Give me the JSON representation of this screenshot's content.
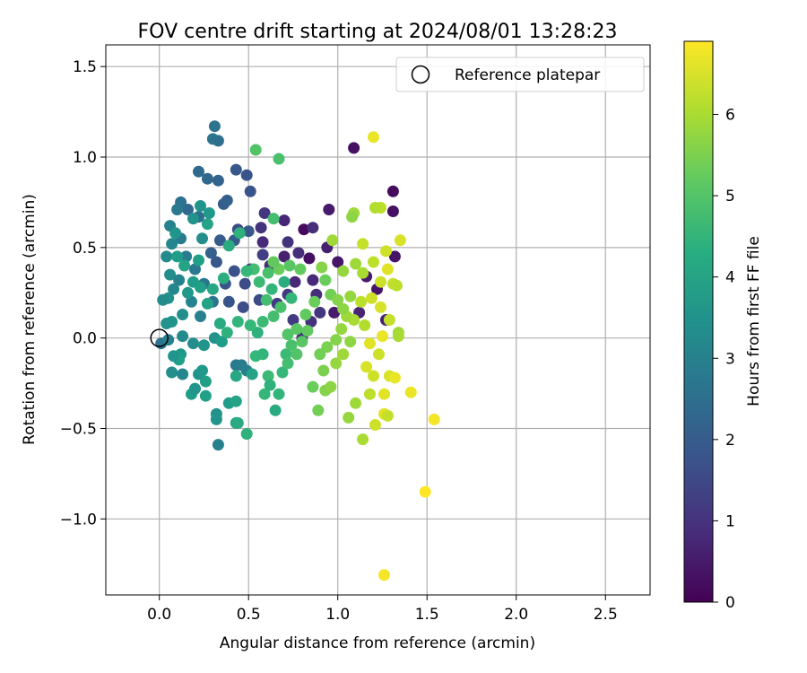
{
  "chart_data": {
    "type": "scatter",
    "title": "FOV centre drift starting at 2024/08/01 13:28:23",
    "xlabel": "Angular distance from reference (arcmin)",
    "ylabel": "Rotation from reference (arcmin)",
    "xlim": [
      -0.3,
      2.75
    ],
    "ylim": [
      -1.42,
      1.62
    ],
    "x_ticks": [
      0.0,
      0.5,
      1.0,
      1.5,
      2.0,
      2.5
    ],
    "x_tick_labels": [
      "0.0",
      "0.5",
      "1.0",
      "1.5",
      "2.0",
      "2.5"
    ],
    "y_ticks": [
      -1.0,
      -0.5,
      0.0,
      0.5,
      1.0,
      1.5
    ],
    "y_tick_labels": [
      "−1.0",
      "−0.5",
      "0.0",
      "0.5",
      "1.0",
      "1.5"
    ],
    "grid": true,
    "legend": {
      "placement": "top-right",
      "entries": [
        "Reference platepar"
      ]
    },
    "reference_point": {
      "x": 0.0,
      "y": 0.0,
      "marker": "open-circle"
    },
    "colorbar": {
      "label": "Hours from first FF file",
      "range": [
        0,
        6.9
      ],
      "ticks": [
        0,
        1,
        2,
        3,
        4,
        5,
        6
      ],
      "tick_labels": [
        "0",
        "1",
        "2",
        "3",
        "4",
        "5",
        "6"
      ],
      "colormap": "viridis"
    },
    "points": [
      {
        "x": 1.09,
        "y": 1.05,
        "h": 0.3
      },
      {
        "x": 1.31,
        "y": 0.81,
        "h": 0.2
      },
      {
        "x": 1.31,
        "y": 0.7,
        "h": 0.3
      },
      {
        "x": 1.32,
        "y": 0.45,
        "h": 0.4
      },
      {
        "x": 0.95,
        "y": 0.71,
        "h": 0.5
      },
      {
        "x": 0.94,
        "y": 0.5,
        "h": 0.6
      },
      {
        "x": 1.0,
        "y": 0.42,
        "h": 0.4
      },
      {
        "x": 1.16,
        "y": 0.34,
        "h": 0.5
      },
      {
        "x": 1.22,
        "y": 0.27,
        "h": 0.4
      },
      {
        "x": 1.27,
        "y": 0.1,
        "h": 0.6
      },
      {
        "x": 1.12,
        "y": 0.14,
        "h": 0.7
      },
      {
        "x": 0.98,
        "y": 0.14,
        "h": 0.5
      },
      {
        "x": 0.86,
        "y": 0.32,
        "h": 0.8
      },
      {
        "x": 0.84,
        "y": 0.44,
        "h": 0.3
      },
      {
        "x": 0.81,
        "y": 0.6,
        "h": 0.2
      },
      {
        "x": 0.86,
        "y": 0.61,
        "h": 0.9
      },
      {
        "x": 0.7,
        "y": 0.65,
        "h": 0.7
      },
      {
        "x": 0.7,
        "y": 0.45,
        "h": 0.6
      },
      {
        "x": 0.62,
        "y": 0.4,
        "h": 0.9
      },
      {
        "x": 0.72,
        "y": 0.53,
        "h": 1.0
      },
      {
        "x": 0.78,
        "y": 0.47,
        "h": 0.9
      },
      {
        "x": 0.72,
        "y": 0.24,
        "h": 1.1
      },
      {
        "x": 0.66,
        "y": 0.19,
        "h": 1.2
      },
      {
        "x": 0.88,
        "y": 0.24,
        "h": 0.9
      },
      {
        "x": 0.9,
        "y": 0.14,
        "h": 1.1
      },
      {
        "x": 0.85,
        "y": 0.09,
        "h": 1.0
      },
      {
        "x": 0.75,
        "y": 0.1,
        "h": 1.2
      },
      {
        "x": 0.8,
        "y": -0.0,
        "h": 1.0
      },
      {
        "x": 0.76,
        "y": 0.31,
        "h": 0.8
      },
      {
        "x": 0.58,
        "y": 0.53,
        "h": 0.8
      },
      {
        "x": 0.59,
        "y": 0.69,
        "h": 1.1
      },
      {
        "x": 0.57,
        "y": 0.61,
        "h": 1.0
      },
      {
        "x": 0.58,
        "y": 0.46,
        "h": 1.3
      },
      {
        "x": 0.51,
        "y": 0.38,
        "h": 1.4
      },
      {
        "x": 0.56,
        "y": 0.21,
        "h": 1.5
      },
      {
        "x": 0.48,
        "y": 0.3,
        "h": 1.6
      },
      {
        "x": 0.42,
        "y": 0.37,
        "h": 1.7
      },
      {
        "x": 0.37,
        "y": 0.3,
        "h": 1.8
      },
      {
        "x": 0.32,
        "y": 0.42,
        "h": 1.9
      },
      {
        "x": 0.47,
        "y": 0.17,
        "h": 1.6
      },
      {
        "x": 0.39,
        "y": 0.2,
        "h": 1.8
      },
      {
        "x": 0.34,
        "y": 0.54,
        "h": 2.0
      },
      {
        "x": 0.29,
        "y": 0.47,
        "h": 2.1
      },
      {
        "x": 0.42,
        "y": 0.54,
        "h": 2.0
      },
      {
        "x": 0.5,
        "y": 0.59,
        "h": 1.9
      },
      {
        "x": 0.51,
        "y": 0.81,
        "h": 1.8
      },
      {
        "x": 0.44,
        "y": 0.6,
        "h": 1.5
      },
      {
        "x": 0.36,
        "y": 0.74,
        "h": 2.0
      },
      {
        "x": 0.49,
        "y": 0.9,
        "h": 1.8
      },
      {
        "x": 0.43,
        "y": 0.93,
        "h": 1.9
      },
      {
        "x": 0.38,
        "y": 0.76,
        "h": 2.1
      },
      {
        "x": 0.33,
        "y": 0.87,
        "h": 2.2
      },
      {
        "x": 0.27,
        "y": 0.88,
        "h": 2.3
      },
      {
        "x": 0.22,
        "y": 0.92,
        "h": 2.4
      },
      {
        "x": 0.31,
        "y": 1.17,
        "h": 2.6
      },
      {
        "x": 0.3,
        "y": 1.1,
        "h": 2.7
      },
      {
        "x": 0.33,
        "y": 1.09,
        "h": 2.5
      },
      {
        "x": 0.22,
        "y": 0.67,
        "h": 2.5
      },
      {
        "x": 0.16,
        "y": 0.71,
        "h": 2.3
      },
      {
        "x": 0.12,
        "y": 0.75,
        "h": 2.6
      },
      {
        "x": 0.1,
        "y": 0.71,
        "h": 2.8
      },
      {
        "x": 0.06,
        "y": 0.62,
        "h": 3.1
      },
      {
        "x": 0.12,
        "y": 0.55,
        "h": 2.9
      },
      {
        "x": 0.07,
        "y": 0.52,
        "h": 3.2
      },
      {
        "x": 0.04,
        "y": 0.45,
        "h": 3.3
      },
      {
        "x": 0.06,
        "y": 0.35,
        "h": 3.4
      },
      {
        "x": 0.08,
        "y": 0.27,
        "h": 3.2
      },
      {
        "x": 0.05,
        "y": 0.22,
        "h": 3.5
      },
      {
        "x": 0.02,
        "y": 0.21,
        "h": 3.3
      },
      {
        "x": 0.11,
        "y": 0.32,
        "h": 3.1
      },
      {
        "x": 0.15,
        "y": 0.45,
        "h": 2.9
      },
      {
        "x": 0.2,
        "y": 0.38,
        "h": 2.8
      },
      {
        "x": 0.25,
        "y": 0.3,
        "h": 2.7
      },
      {
        "x": 0.3,
        "y": 0.2,
        "h": 2.6
      },
      {
        "x": 0.23,
        "y": 0.12,
        "h": 3.0
      },
      {
        "x": 0.18,
        "y": 0.2,
        "h": 3.1
      },
      {
        "x": 0.13,
        "y": 0.13,
        "h": 3.4
      },
      {
        "x": 0.07,
        "y": 0.09,
        "h": 3.6
      },
      {
        "x": 0.04,
        "y": 0.08,
        "h": 3.5
      },
      {
        "x": 0.01,
        "y": -0.03,
        "h": 2.6
      },
      {
        "x": 0.05,
        "y": -0.01,
        "h": 3.0
      },
      {
        "x": 0.13,
        "y": 0.01,
        "h": 3.3
      },
      {
        "x": 0.19,
        "y": -0.03,
        "h": 3.4
      },
      {
        "x": 0.25,
        "y": -0.04,
        "h": 3.6
      },
      {
        "x": 0.31,
        "y": 0.0,
        "h": 3.5
      },
      {
        "x": 0.35,
        "y": -0.02,
        "h": 3.8
      },
      {
        "x": 0.12,
        "y": -0.09,
        "h": 3.7
      },
      {
        "x": 0.11,
        "y": -0.12,
        "h": 3.9
      },
      {
        "x": 0.08,
        "y": -0.1,
        "h": 3.6
      },
      {
        "x": 0.07,
        "y": -0.19,
        "h": 3.4
      },
      {
        "x": 0.13,
        "y": -0.2,
        "h": 3.2
      },
      {
        "x": 0.22,
        "y": -0.2,
        "h": 3.5
      },
      {
        "x": 0.24,
        "y": -0.18,
        "h": 3.7
      },
      {
        "x": 0.26,
        "y": -0.24,
        "h": 3.9
      },
      {
        "x": 0.18,
        "y": -0.31,
        "h": 3.8
      },
      {
        "x": 0.2,
        "y": -0.28,
        "h": 3.6
      },
      {
        "x": 0.26,
        "y": -0.32,
        "h": 3.9
      },
      {
        "x": 0.32,
        "y": -0.42,
        "h": 3.5
      },
      {
        "x": 0.32,
        "y": -0.45,
        "h": 3.6
      },
      {
        "x": 0.39,
        "y": -0.36,
        "h": 3.8
      },
      {
        "x": 0.43,
        "y": -0.35,
        "h": 4.0
      },
      {
        "x": 0.33,
        "y": -0.59,
        "h": 3.0
      },
      {
        "x": 0.43,
        "y": -0.47,
        "h": 4.0
      },
      {
        "x": 0.44,
        "y": -0.47,
        "h": 4.2
      },
      {
        "x": 0.49,
        "y": -0.53,
        "h": 4.4
      },
      {
        "x": 0.43,
        "y": -0.15,
        "h": 2.8
      },
      {
        "x": 0.46,
        "y": -0.15,
        "h": 2.9
      },
      {
        "x": 0.49,
        "y": -0.18,
        "h": 3.0
      },
      {
        "x": 0.43,
        "y": -0.21,
        "h": 4.1
      },
      {
        "x": 0.52,
        "y": -0.2,
        "h": 4.0
      },
      {
        "x": 0.54,
        "y": -0.1,
        "h": 4.6
      },
      {
        "x": 0.55,
        "y": 0.03,
        "h": 4.4
      },
      {
        "x": 0.58,
        "y": -0.09,
        "h": 4.5
      },
      {
        "x": 0.59,
        "y": -0.31,
        "h": 4.6
      },
      {
        "x": 0.61,
        "y": -0.21,
        "h": 4.7
      },
      {
        "x": 0.62,
        "y": -0.26,
        "h": 4.4
      },
      {
        "x": 0.65,
        "y": -0.4,
        "h": 4.2
      },
      {
        "x": 0.67,
        "y": -0.31,
        "h": 4.5
      },
      {
        "x": 0.69,
        "y": -0.19,
        "h": 4.6
      },
      {
        "x": 0.71,
        "y": -0.09,
        "h": 4.7
      },
      {
        "x": 0.72,
        "y": -0.14,
        "h": 4.8
      },
      {
        "x": 0.74,
        "y": -0.04,
        "h": 4.9
      },
      {
        "x": 0.77,
        "y": -0.09,
        "h": 5.0
      },
      {
        "x": 0.8,
        "y": -0.02,
        "h": 5.1
      },
      {
        "x": 0.83,
        "y": 0.04,
        "h": 5.2
      },
      {
        "x": 0.86,
        "y": -0.27,
        "h": 5.3
      },
      {
        "x": 0.89,
        "y": -0.4,
        "h": 5.4
      },
      {
        "x": 0.92,
        "y": -0.18,
        "h": 5.5
      },
      {
        "x": 0.93,
        "y": -0.29,
        "h": 5.6
      },
      {
        "x": 0.96,
        "y": -0.27,
        "h": 5.7
      },
      {
        "x": 0.99,
        "y": -0.14,
        "h": 5.8
      },
      {
        "x": 1.03,
        "y": -0.09,
        "h": 5.9
      },
      {
        "x": 1.06,
        "y": -0.44,
        "h": 5.8
      },
      {
        "x": 1.1,
        "y": -0.36,
        "h": 5.9
      },
      {
        "x": 1.14,
        "y": -0.56,
        "h": 6.0
      },
      {
        "x": 1.18,
        "y": -0.31,
        "h": 6.2
      },
      {
        "x": 1.21,
        "y": -0.48,
        "h": 6.4
      },
      {
        "x": 1.26,
        "y": -0.42,
        "h": 6.6
      },
      {
        "x": 1.28,
        "y": -0.43,
        "h": 6.3
      },
      {
        "x": 1.29,
        "y": -0.21,
        "h": 6.5
      },
      {
        "x": 1.32,
        "y": -0.22,
        "h": 6.7
      },
      {
        "x": 1.26,
        "y": -0.31,
        "h": 6.6
      },
      {
        "x": 1.2,
        "y": -0.21,
        "h": 6.4
      },
      {
        "x": 1.16,
        "y": -0.16,
        "h": 6.5
      },
      {
        "x": 1.41,
        "y": -0.3,
        "h": 6.7
      },
      {
        "x": 1.54,
        "y": -0.45,
        "h": 6.8
      },
      {
        "x": 1.49,
        "y": -0.85,
        "h": 6.9
      },
      {
        "x": 1.26,
        "y": -1.31,
        "h": 6.8
      },
      {
        "x": 1.23,
        "y": -0.09,
        "h": 6.4
      },
      {
        "x": 1.18,
        "y": -0.03,
        "h": 6.6
      },
      {
        "x": 1.25,
        "y": 0.01,
        "h": 6.7
      },
      {
        "x": 1.34,
        "y": 0.03,
        "h": 5.9
      },
      {
        "x": 1.34,
        "y": 0.01,
        "h": 6.0
      },
      {
        "x": 1.29,
        "y": 0.1,
        "h": 6.3
      },
      {
        "x": 1.24,
        "y": 0.17,
        "h": 6.5
      },
      {
        "x": 1.19,
        "y": 0.22,
        "h": 6.4
      },
      {
        "x": 1.13,
        "y": 0.2,
        "h": 6.2
      },
      {
        "x": 1.15,
        "y": 0.07,
        "h": 6.1
      },
      {
        "x": 1.09,
        "y": 0.1,
        "h": 6.0
      },
      {
        "x": 1.05,
        "y": 0.12,
        "h": 5.9
      },
      {
        "x": 1.02,
        "y": 0.05,
        "h": 5.8
      },
      {
        "x": 1.07,
        "y": -0.02,
        "h": 5.7
      },
      {
        "x": 0.99,
        "y": -0.01,
        "h": 5.6
      },
      {
        "x": 0.94,
        "y": -0.05,
        "h": 5.5
      },
      {
        "x": 0.9,
        "y": -0.09,
        "h": 5.4
      },
      {
        "x": 1.24,
        "y": 0.31,
        "h": 6.4
      },
      {
        "x": 1.28,
        "y": 0.38,
        "h": 6.6
      },
      {
        "x": 1.31,
        "y": 0.3,
        "h": 6.3
      },
      {
        "x": 1.33,
        "y": 0.29,
        "h": 6.2
      },
      {
        "x": 1.27,
        "y": 0.48,
        "h": 6.4
      },
      {
        "x": 1.2,
        "y": 0.42,
        "h": 6.2
      },
      {
        "x": 1.14,
        "y": 0.36,
        "h": 6.0
      },
      {
        "x": 1.1,
        "y": 0.41,
        "h": 5.9
      },
      {
        "x": 1.03,
        "y": 0.37,
        "h": 5.8
      },
      {
        "x": 1.35,
        "y": 0.54,
        "h": 6.5
      },
      {
        "x": 1.24,
        "y": 0.72,
        "h": 6.2
      },
      {
        "x": 1.21,
        "y": 0.72,
        "h": 6.1
      },
      {
        "x": 1.2,
        "y": 1.11,
        "h": 6.7
      },
      {
        "x": 1.14,
        "y": 0.52,
        "h": 6.3
      },
      {
        "x": 1.09,
        "y": 0.69,
        "h": 5.9
      },
      {
        "x": 1.08,
        "y": 0.67,
        "h": 5.7
      },
      {
        "x": 0.97,
        "y": 0.54,
        "h": 5.9
      },
      {
        "x": 0.91,
        "y": 0.39,
        "h": 5.6
      },
      {
        "x": 0.93,
        "y": 0.32,
        "h": 5.3
      },
      {
        "x": 0.79,
        "y": 0.38,
        "h": 5.2
      },
      {
        "x": 0.73,
        "y": 0.4,
        "h": 5.1
      },
      {
        "x": 0.67,
        "y": 0.38,
        "h": 5.3
      },
      {
        "x": 0.64,
        "y": 0.42,
        "h": 5.2
      },
      {
        "x": 0.61,
        "y": 0.36,
        "h": 4.9
      },
      {
        "x": 0.56,
        "y": 0.31,
        "h": 4.7
      },
      {
        "x": 0.53,
        "y": 0.38,
        "h": 4.8
      },
      {
        "x": 0.49,
        "y": 0.37,
        "h": 4.6
      },
      {
        "x": 0.64,
        "y": 0.66,
        "h": 4.8
      },
      {
        "x": 0.54,
        "y": 1.04,
        "h": 5.0
      },
      {
        "x": 0.67,
        "y": 0.99,
        "h": 4.9
      },
      {
        "x": 0.45,
        "y": 0.58,
        "h": 4.4
      },
      {
        "x": 0.39,
        "y": 0.51,
        "h": 4.2
      },
      {
        "x": 0.36,
        "y": 0.33,
        "h": 4.3
      },
      {
        "x": 0.3,
        "y": 0.27,
        "h": 4.1
      },
      {
        "x": 0.27,
        "y": 0.19,
        "h": 4.0
      },
      {
        "x": 0.23,
        "y": 0.28,
        "h": 3.9
      },
      {
        "x": 0.19,
        "y": 0.31,
        "h": 3.8
      },
      {
        "x": 0.16,
        "y": 0.25,
        "h": 3.7
      },
      {
        "x": 0.22,
        "y": 0.43,
        "h": 3.9
      },
      {
        "x": 0.27,
        "y": 0.63,
        "h": 4.0
      },
      {
        "x": 0.23,
        "y": 0.73,
        "h": 3.6
      },
      {
        "x": 0.28,
        "y": 0.69,
        "h": 3.7
      },
      {
        "x": 0.34,
        "y": 0.08,
        "h": 4.2
      },
      {
        "x": 0.38,
        "y": 0.03,
        "h": 4.4
      },
      {
        "x": 0.44,
        "y": 0.09,
        "h": 4.5
      },
      {
        "x": 0.51,
        "y": 0.07,
        "h": 4.6
      },
      {
        "x": 0.58,
        "y": 0.09,
        "h": 4.7
      },
      {
        "x": 0.64,
        "y": 0.12,
        "h": 4.8
      },
      {
        "x": 0.68,
        "y": 0.17,
        "h": 4.9
      },
      {
        "x": 0.72,
        "y": 0.02,
        "h": 5.0
      },
      {
        "x": 0.77,
        "y": 0.05,
        "h": 5.1
      },
      {
        "x": 0.82,
        "y": 0.13,
        "h": 5.2
      },
      {
        "x": 0.87,
        "y": 0.2,
        "h": 5.3
      },
      {
        "x": 0.96,
        "y": 0.24,
        "h": 5.4
      },
      {
        "x": 1.0,
        "y": 0.21,
        "h": 5.6
      },
      {
        "x": 1.03,
        "y": 0.16,
        "h": 5.7
      },
      {
        "x": 1.07,
        "y": 0.23,
        "h": 5.8
      },
      {
        "x": 0.6,
        "y": 0.21,
        "h": 4.8
      },
      {
        "x": 0.63,
        "y": 0.27,
        "h": 4.5
      },
      {
        "x": 0.7,
        "y": 0.31,
        "h": 4.3
      },
      {
        "x": 0.74,
        "y": 0.22,
        "h": 4.6
      },
      {
        "x": 0.14,
        "y": 0.4,
        "h": 4.0
      },
      {
        "x": 0.1,
        "y": 0.45,
        "h": 3.8
      },
      {
        "x": 0.09,
        "y": 0.58,
        "h": 3.6
      },
      {
        "x": 0.19,
        "y": 0.66,
        "h": 3.5
      },
      {
        "x": 0.24,
        "y": 0.55,
        "h": 3.4
      }
    ]
  }
}
